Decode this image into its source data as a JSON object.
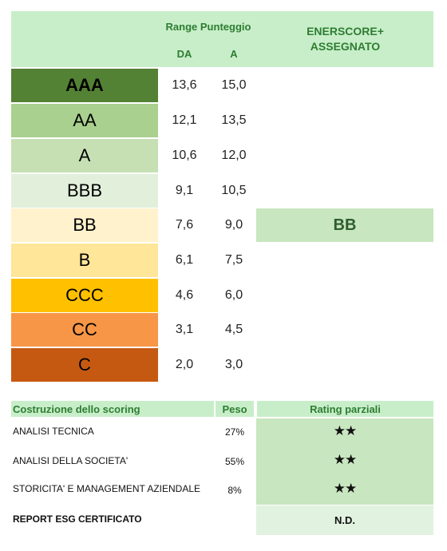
{
  "header": {
    "range_label": "Range Punteggio",
    "from_label": "DA",
    "to_label": "A",
    "assigned_title_line1": "ENERSCORE+",
    "assigned_title_line2": "ASSEGNATO"
  },
  "ratings": [
    {
      "label": "AAA",
      "from": "13,6",
      "to": "15,0",
      "color": "#548235",
      "text_color": "#000000"
    },
    {
      "label": "AA",
      "from": "12,1",
      "to": "13,5",
      "color": "#a9d08e",
      "text_color": "#000000"
    },
    {
      "label": "A",
      "from": "10,6",
      "to": "12,0",
      "color": "#c6e0b4",
      "text_color": "#000000"
    },
    {
      "label": "BBB",
      "from": "9,1",
      "to": "10,5",
      "color": "#e2efda",
      "text_color": "#000000"
    },
    {
      "label": "BB",
      "from": "7,6",
      "to": "9,0",
      "color": "#fff2cc",
      "text_color": "#000000"
    },
    {
      "label": "B",
      "from": "6,1",
      "to": "7,5",
      "color": "#ffe699",
      "text_color": "#000000"
    },
    {
      "label": "CCC",
      "from": "4,6",
      "to": "6,0",
      "color": "#ffc000",
      "text_color": "#000000"
    },
    {
      "label": "CC",
      "from": "3,1",
      "to": "4,5",
      "color": "#f79646",
      "text_color": "#000000"
    },
    {
      "label": "C",
      "from": "2,0",
      "to": "3,0",
      "color": "#c65911",
      "text_color": "#000000"
    }
  ],
  "assigned": {
    "value": "BB",
    "row_label": "BB"
  },
  "scoring": {
    "header_label": "Costruzione dello scoring",
    "header_weight": "Peso",
    "header_partial": "Rating parziali",
    "rows": [
      {
        "label": "ANALISI TECNICA",
        "weight": "27%",
        "partial": "★★"
      },
      {
        "label": "ANALISI DELLA SOCIETA'",
        "weight": "55%",
        "partial": "★★"
      },
      {
        "label": "STORICITA' E MANAGEMENT AZIENDALE",
        "weight": "8%",
        "partial": "★★"
      }
    ],
    "report": {
      "label": "REPORT ESG CERTIFICATO",
      "partial": "N.D."
    }
  }
}
